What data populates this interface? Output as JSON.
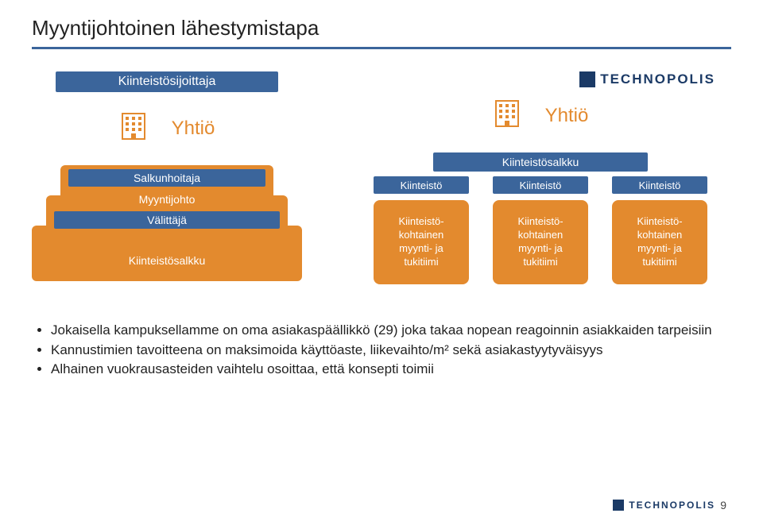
{
  "title": "Myyntijohtoinen lähestymistapa",
  "colors": {
    "blue": "#3b659b",
    "orange": "#e38a2e",
    "logo_blue": "#1b3a66",
    "text": "#222222",
    "background": "#ffffff"
  },
  "logo_text": "TECHNOPOLIS",
  "left": {
    "top_bar": "Kiinteistösijoittaja",
    "company": "Yhtiö",
    "stack_blue1": "Salkunhoitaja",
    "stack_text1": "Myyntijohto",
    "stack_blue2": "Välittäjä",
    "stack_text2": "Kiinteistösalkku"
  },
  "right": {
    "company": "Yhtiö",
    "salkku": "Kiinteistösalkku",
    "property_label": "Kiinteistö",
    "team_label": "Kiinteistö-\nkohtainen\nmyynti- ja\ntukitiimi"
  },
  "bullets": [
    "Jokaisella kampuksellamme on oma asiakaspäällikkö (29) joka takaa nopean reagoinnin asiakkaiden tarpeisiin",
    "Kannustimien tavoitteena on maksimoida käyttöaste, liikevaihto/m² sekä asiakastyytyväisyys",
    "Alhainen vuokrausasteiden vaihtelu osoittaa, että konsepti toimii"
  ],
  "page_number": "9"
}
